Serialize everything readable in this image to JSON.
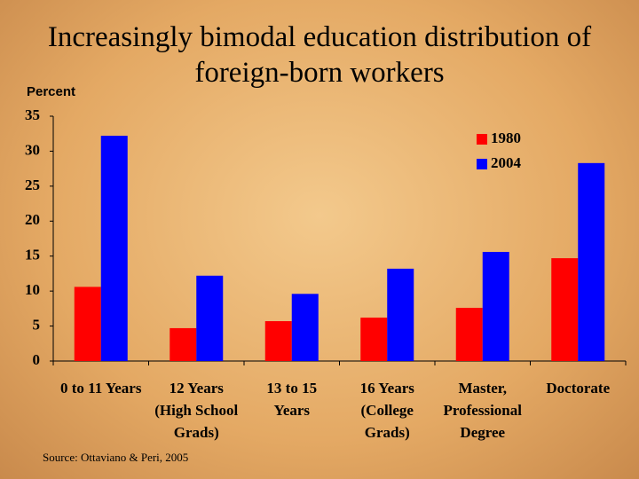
{
  "chart_data": {
    "type": "bar",
    "title": "Increasingly bimodal education distribution of foreign-born workers",
    "y_label": "Percent",
    "source": "Source: Ottaviano & Peri, 2005",
    "categories": [
      "0 to 11 Years",
      "12 Years\n(High School\nGrads)",
      "13 to 15\nYears",
      "16 Years\n(College\nGrads)",
      "Master,\nProfessional\nDegree",
      "Doctorate"
    ],
    "series": [
      {
        "name": "1980",
        "color": "#ff0000",
        "values": [
          10.6,
          4.7,
          5.7,
          6.2,
          7.6,
          14.7
        ]
      },
      {
        "name": "2004",
        "color": "#0000ff",
        "values": [
          32.2,
          12.2,
          9.6,
          13.2,
          15.6,
          28.3
        ]
      }
    ],
    "ylim": [
      0,
      35
    ],
    "yticks": [
      0,
      5,
      10,
      15,
      20,
      25,
      30,
      35
    ],
    "legend": "upper right"
  }
}
